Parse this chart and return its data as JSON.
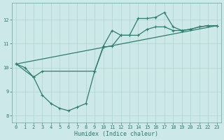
{
  "xlabel": "Humidex (Indice chaleur)",
  "bg_color": "#cce8e8",
  "line_color": "#2e7d6e",
  "grid_color": "#aed4ce",
  "xlim": [
    -0.5,
    23.5
  ],
  "ylim": [
    7.7,
    12.7
  ],
  "xticks": [
    0,
    1,
    2,
    3,
    4,
    5,
    6,
    7,
    8,
    9,
    10,
    11,
    12,
    13,
    14,
    15,
    16,
    17,
    18,
    19,
    20,
    21,
    22,
    23
  ],
  "yticks": [
    8,
    9,
    10,
    11,
    12
  ],
  "line1_x": [
    0,
    1,
    2,
    3,
    4,
    5,
    6,
    7,
    8,
    9,
    10,
    11,
    12,
    13,
    14,
    15,
    16,
    17,
    18,
    19,
    20,
    21,
    22,
    23
  ],
  "line1_y": [
    10.15,
    10.0,
    9.6,
    8.85,
    8.5,
    8.3,
    8.2,
    8.35,
    8.5,
    9.85,
    10.9,
    11.55,
    11.35,
    11.35,
    12.05,
    12.05,
    12.1,
    12.3,
    11.7,
    11.55,
    11.6,
    11.7,
    11.75,
    11.75
  ],
  "line2_x": [
    0,
    2,
    3,
    9,
    10,
    11,
    12,
    13,
    14,
    15,
    16,
    17,
    18,
    19,
    20,
    21,
    22,
    23
  ],
  "line2_y": [
    10.15,
    9.6,
    9.85,
    9.85,
    10.85,
    10.9,
    11.35,
    11.35,
    11.35,
    11.6,
    11.7,
    11.7,
    11.55,
    11.55,
    11.6,
    11.7,
    11.75,
    11.75
  ],
  "line3_x": [
    0,
    23
  ],
  "line3_y": [
    10.15,
    11.75
  ],
  "marker_size": 2.5,
  "linewidth": 0.9
}
